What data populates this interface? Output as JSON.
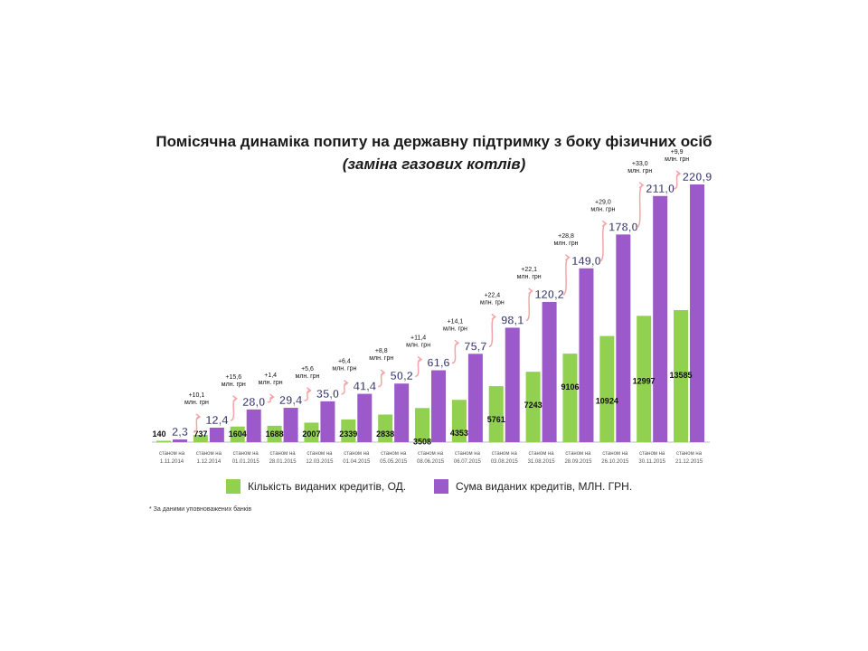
{
  "chart_data": {
    "type": "bar",
    "title": "Помісячна динаміка попиту на державну підтримку з боку фізичних осіб",
    "subtitle": "(заміна газових котлів)",
    "category_prefix": "станом на",
    "categories": [
      "1.11.2014",
      "1.12.2014",
      "01.01.2015",
      "28.01.2015",
      "12.03.2015",
      "01.04.2015",
      "05.05.2015",
      "08.06.2015",
      "06.07.2015",
      "03.08.2015",
      "31.08.2015",
      "28.09.2015",
      "26.10.2015",
      "30.11.2015",
      "21.12.2015"
    ],
    "series": [
      {
        "name": "Кількість виданих кредитів, ОД.",
        "color": "#92d050",
        "values": [
          140,
          737,
          1604,
          1688,
          2007,
          2339,
          2838,
          3508,
          4353,
          5761,
          7243,
          9106,
          10924,
          12997,
          13585
        ]
      },
      {
        "name": "Сума виданих кредитів, МЛН. ГРН.",
        "color": "#9b59c9",
        "values": [
          "2,3",
          "12,4",
          "28,0",
          "29,4",
          "35,0",
          "41,4",
          "50,2",
          "61,6",
          "75,7",
          "98,1",
          "120,2",
          "149,0",
          "178,0",
          "211,0",
          "220,9"
        ]
      }
    ],
    "increments": [
      "+10,1",
      "+15,6",
      "+1,4",
      "+5,6",
      "+6,4",
      "+8,8",
      "+11,4",
      "+14,1",
      "+22,4",
      "+22,1",
      "+28,8",
      "+29,0",
      "+33,0",
      "+9,9"
    ],
    "increment_unit": "млн. грн",
    "arrow_color": "#f4a6a6",
    "legend_position": "bottom",
    "grid": false
  },
  "footnote": "* За даними уповноважених банків"
}
